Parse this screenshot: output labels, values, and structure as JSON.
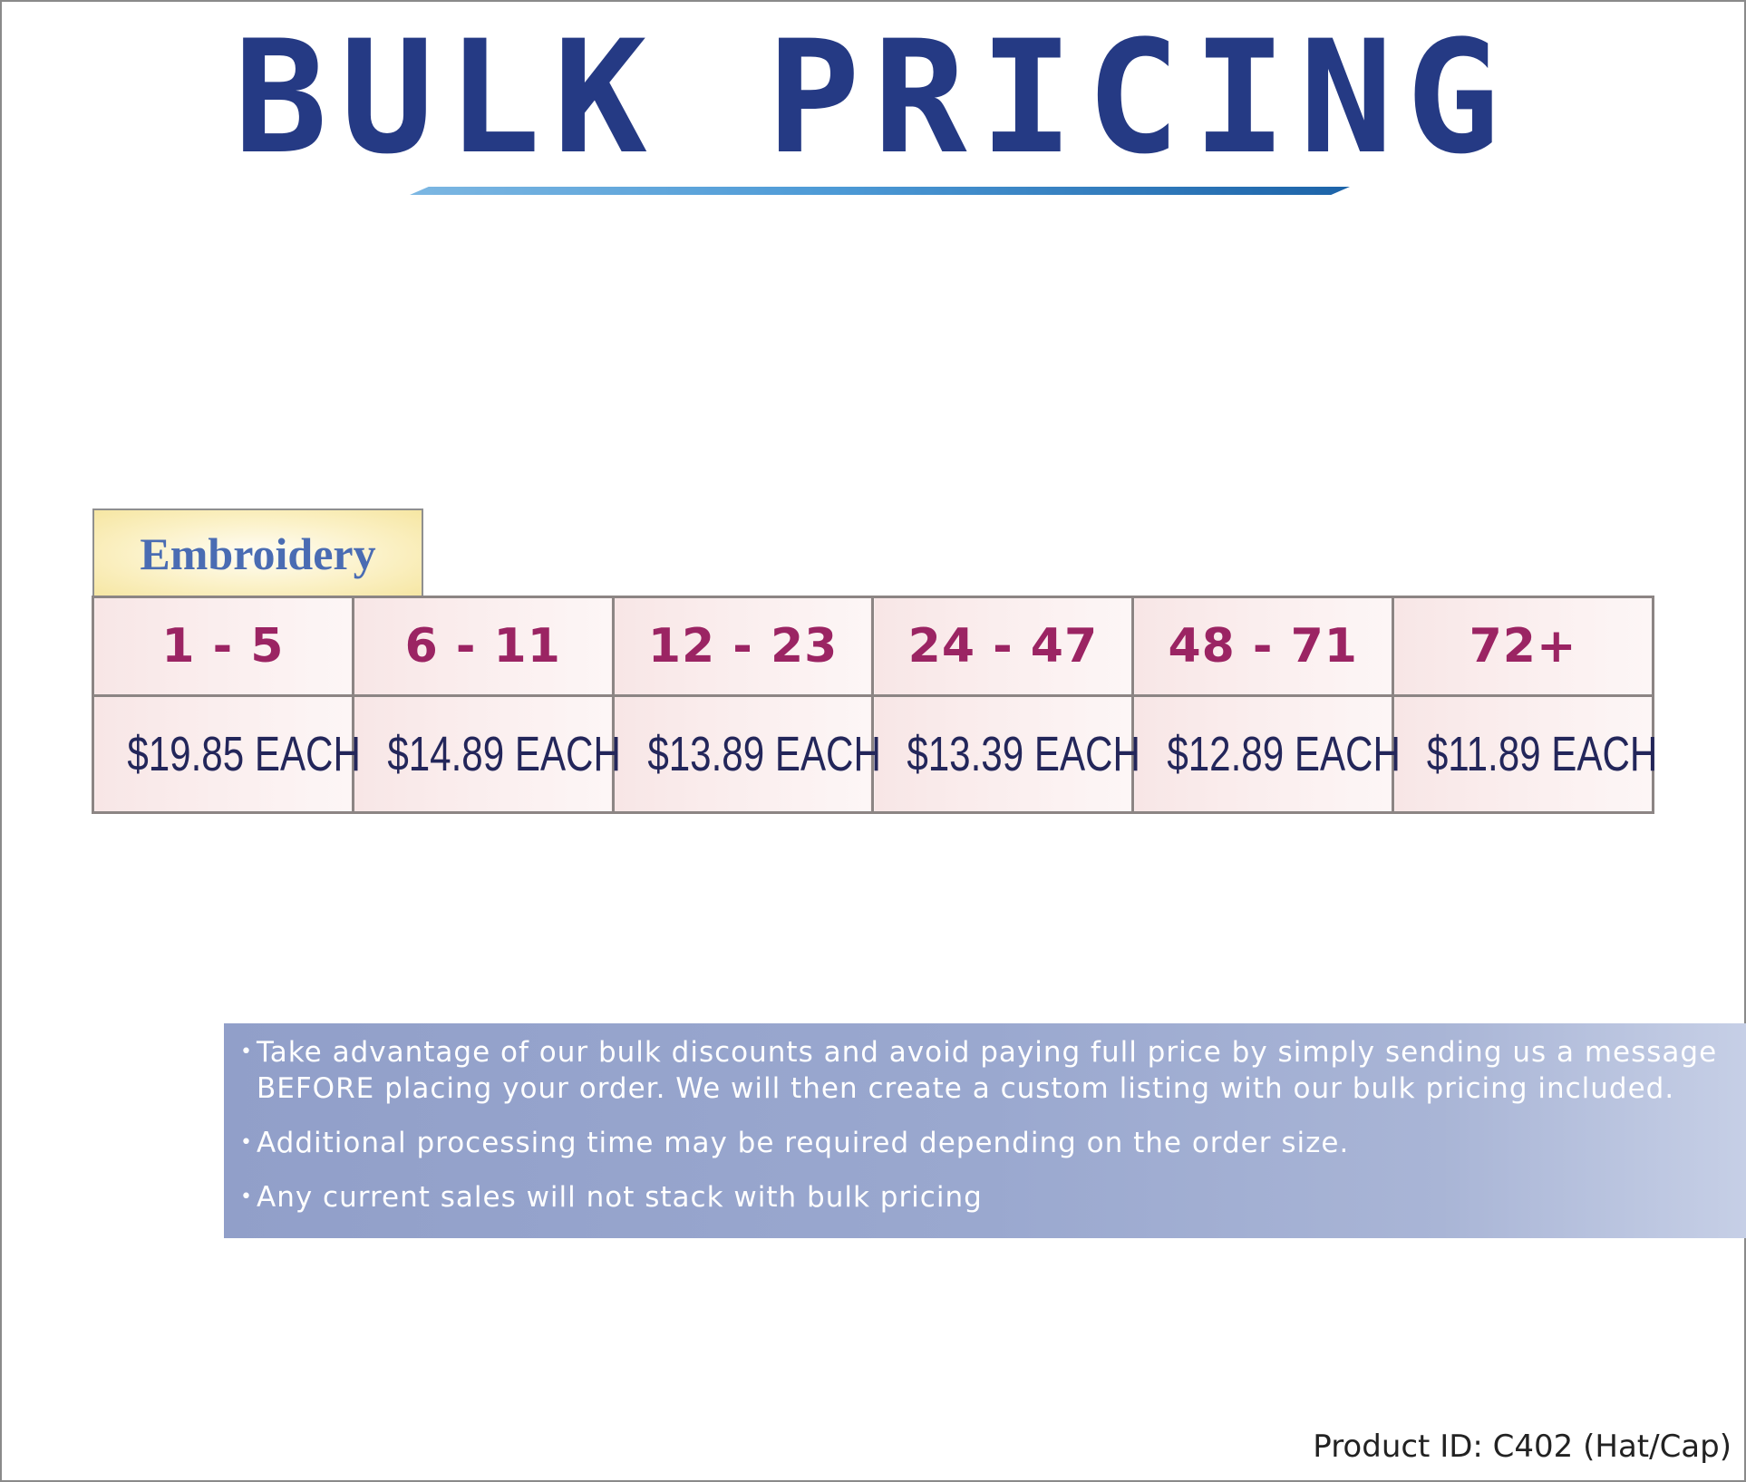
{
  "header": {
    "title": "BULK PRICING"
  },
  "section": {
    "label": "Embroidery"
  },
  "pricing_table": {
    "quantities": [
      "1 - 5",
      "6 - 11",
      "12 - 23",
      "24 - 47",
      "48 - 71",
      "72+"
    ],
    "prices": [
      "$19.85 EACH",
      "$14.89 EACH",
      "$13.89 EACH",
      "$13.39 EACH",
      "$12.89 EACH",
      "$11.89 EACH"
    ]
  },
  "notes": [
    "Take advantage of our bulk discounts and avoid paying full price by simply sending us a message BEFORE placing your order. We will then create a custom listing with our bulk pricing included.",
    "Additional processing time may be required depending on the order size.",
    "Any current sales will not stack with bulk pricing"
  ],
  "footer": {
    "product_id": "Product ID: C402 (Hat/Cap)"
  },
  "colors": {
    "title": "#253a84",
    "quantity_text": "#9b2463",
    "price_text": "#23265a",
    "section_label": "#4a6cb3",
    "notes_background": "#9aa8cf"
  }
}
